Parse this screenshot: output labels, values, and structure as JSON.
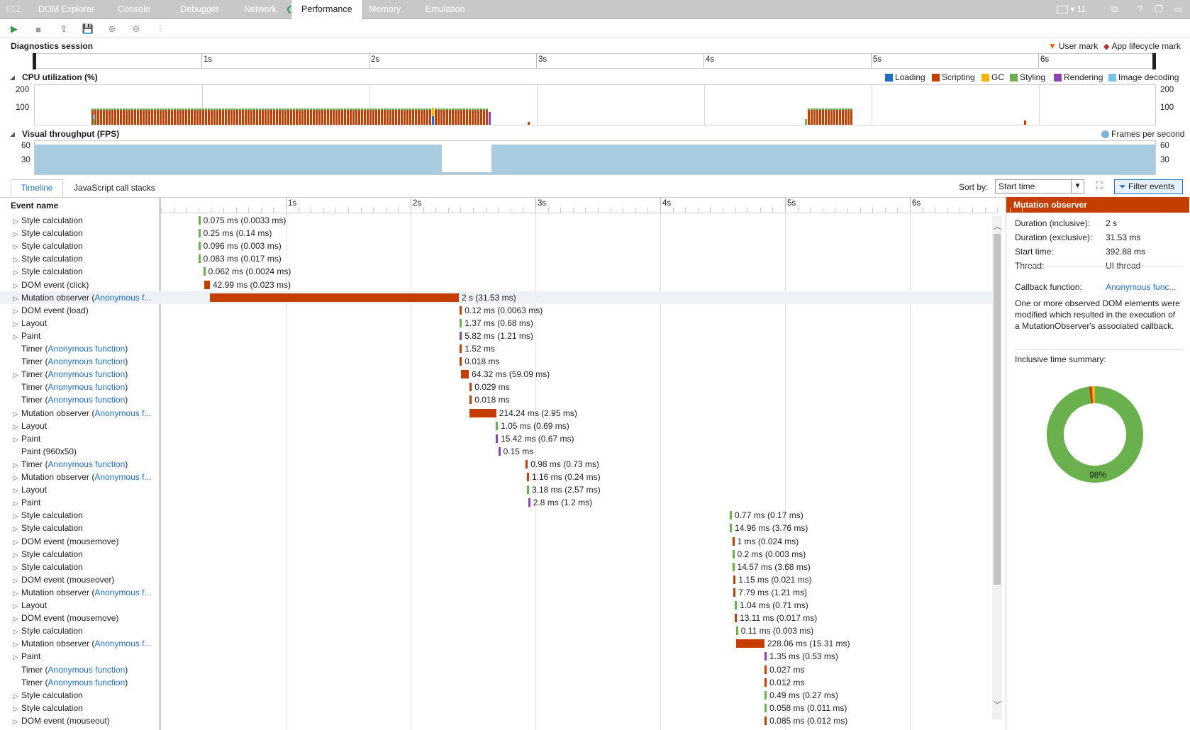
{
  "tabs": [
    {
      "label": "F12",
      "active": false
    },
    {
      "label": "DOM Explorer",
      "active": false
    },
    {
      "label": "Console",
      "active": false
    },
    {
      "label": "Debugger",
      "active": false
    },
    {
      "label": "Network",
      "active": false
    },
    {
      "label": "Performance",
      "active": true
    },
    {
      "label": "Memory",
      "active": false
    },
    {
      "label": "Emulation",
      "active": false
    }
  ],
  "tab_right": {
    "count": "11"
  },
  "toolbar": {
    "icons": [
      "play-icon",
      "stop-icon",
      "import-icon",
      "save-icon",
      "zoom-in-icon",
      "zoom-out-icon",
      "chart-icon"
    ]
  },
  "session": {
    "label": "Diagnostics session",
    "legend_user_mark": "User mark",
    "legend_app_mark": "App lifecycle mark",
    "ticks": [
      "1s",
      "2s",
      "3s",
      "4s",
      "5s",
      "6s"
    ]
  },
  "cpu": {
    "label": "CPU utilization (%)",
    "y_top": "200",
    "y_mid": "100",
    "legend": [
      {
        "name": "Loading",
        "color": "#1f6fc5"
      },
      {
        "name": "Scripting",
        "color": "#c43e00"
      },
      {
        "name": "GC",
        "color": "#f4b400"
      },
      {
        "name": "Styling",
        "color": "#6ab04c"
      },
      {
        "name": "Rendering",
        "color": "#8e44ad"
      },
      {
        "name": "Image decoding",
        "color": "#79c4e6"
      }
    ]
  },
  "fps": {
    "label": "Visual throughput (FPS)",
    "legend": "Frames per second",
    "y_top": "60",
    "y_mid": "30"
  },
  "views": {
    "tab_timeline": "Timeline",
    "tab_callstacks": "JavaScript call stacks",
    "sort_label": "Sort by:",
    "sort_value": "Start time",
    "filter_label": "Filter events"
  },
  "timeline": {
    "column_header": "Event name",
    "ticks": [
      "1s",
      "2s",
      "3s",
      "4s",
      "5s",
      "6s"
    ]
  },
  "events": [
    {
      "name": "Style calculation",
      "link": "",
      "expand": true,
      "start": 0.3,
      "dur": 0.01,
      "cat": "styling",
      "label": "0.075 ms (0.0033 ms)"
    },
    {
      "name": "Style calculation",
      "link": "",
      "expand": true,
      "start": 0.3,
      "dur": 0.01,
      "cat": "styling",
      "label": "0.25 ms (0.14 ms)"
    },
    {
      "name": "Style calculation",
      "link": "",
      "expand": true,
      "start": 0.3,
      "dur": 0.01,
      "cat": "styling",
      "label": "0.096 ms (0.003 ms)"
    },
    {
      "name": "Style calculation",
      "link": "",
      "expand": true,
      "start": 0.3,
      "dur": 0.01,
      "cat": "styling",
      "label": "0.083 ms (0.017 ms)"
    },
    {
      "name": "Style calculation",
      "link": "",
      "expand": true,
      "start": 0.34,
      "dur": 0.01,
      "cat": "styling",
      "label": "0.062 ms (0.0024 ms)"
    },
    {
      "name": "DOM event (click)",
      "link": "",
      "expand": true,
      "start": 0.35,
      "dur": 0.043,
      "cat": "scripting",
      "label": "42.99 ms (0.023 ms)"
    },
    {
      "name": "Mutation observer (",
      "link": "Anonymous f...",
      "close": "",
      "expand": true,
      "start": 0.393,
      "dur": 2.0,
      "cat": "scripting",
      "label": "2 s (31.53 ms)",
      "selected": true
    },
    {
      "name": "DOM event (load)",
      "link": "",
      "expand": true,
      "start": 2.4,
      "dur": 0.01,
      "cat": "scripting",
      "label": "0.12 ms (0.0063 ms)"
    },
    {
      "name": "Layout",
      "link": "",
      "expand": true,
      "start": 2.4,
      "dur": 0.01,
      "cat": "styling",
      "label": "1.37 ms (0.68 ms)"
    },
    {
      "name": "Paint",
      "link": "",
      "expand": true,
      "start": 2.4,
      "dur": 0.01,
      "cat": "rendering",
      "label": "5.82 ms (1.21 ms)"
    },
    {
      "name": "Timer (",
      "link": "Anonymous function",
      "close": ")",
      "expand": false,
      "start": 2.4,
      "dur": 0.01,
      "cat": "scripting",
      "label": "1.52 ms"
    },
    {
      "name": "Timer (",
      "link": "Anonymous function",
      "close": ")",
      "expand": false,
      "start": 2.4,
      "dur": 0.01,
      "cat": "scripting",
      "label": "0.018 ms"
    },
    {
      "name": "Timer (",
      "link": "Anonymous function",
      "close": ")",
      "expand": true,
      "start": 2.41,
      "dur": 0.064,
      "cat": "scripting",
      "label": "64.32 ms (59.09 ms)"
    },
    {
      "name": "Timer (",
      "link": "Anonymous function",
      "close": ")",
      "expand": false,
      "start": 2.48,
      "dur": 0.01,
      "cat": "scripting",
      "label": "0.029 ms"
    },
    {
      "name": "Timer (",
      "link": "Anonymous function",
      "close": ")",
      "expand": false,
      "start": 2.48,
      "dur": 0.01,
      "cat": "scripting",
      "label": "0.018 ms"
    },
    {
      "name": "Mutation observer (",
      "link": "Anonymous f...",
      "close": "",
      "expand": true,
      "start": 2.48,
      "dur": 0.214,
      "cat": "scripting",
      "label": "214.24 ms (2.95 ms)"
    },
    {
      "name": "Layout",
      "link": "",
      "expand": true,
      "start": 2.69,
      "dur": 0.01,
      "cat": "styling",
      "label": "1.05 ms (0.69 ms)"
    },
    {
      "name": "Paint",
      "link": "",
      "expand": true,
      "start": 2.69,
      "dur": 0.015,
      "cat": "rendering",
      "label": "15.42 ms (0.67 ms)"
    },
    {
      "name": "Paint (960x50)",
      "link": "",
      "expand": false,
      "start": 2.71,
      "dur": 0.01,
      "cat": "rendering",
      "label": "0.15 ms"
    },
    {
      "name": "Timer (",
      "link": "Anonymous function",
      "close": ")",
      "expand": true,
      "start": 2.93,
      "dur": 0.01,
      "cat": "scripting",
      "label": "0.98 ms (0.73 ms)"
    },
    {
      "name": "Mutation observer (",
      "link": "Anonymous f...",
      "close": "",
      "expand": true,
      "start": 2.94,
      "dur": 0.01,
      "cat": "scripting",
      "label": "1.16 ms (0.24 ms)"
    },
    {
      "name": "Layout",
      "link": "",
      "expand": true,
      "start": 2.94,
      "dur": 0.01,
      "cat": "styling",
      "label": "3.18 ms (2.57 ms)"
    },
    {
      "name": "Paint",
      "link": "",
      "expand": true,
      "start": 2.95,
      "dur": 0.01,
      "cat": "rendering",
      "label": "2.8 ms (1.2 ms)"
    },
    {
      "name": "Style calculation",
      "link": "",
      "expand": true,
      "start": 4.57,
      "dur": 0.01,
      "cat": "styling",
      "label": "0.77 ms (0.17 ms)"
    },
    {
      "name": "Style calculation",
      "link": "",
      "expand": true,
      "start": 4.57,
      "dur": 0.015,
      "cat": "styling",
      "label": "14.96 ms (3.76 ms)"
    },
    {
      "name": "DOM event (mousemove)",
      "link": "",
      "expand": true,
      "start": 4.59,
      "dur": 0.01,
      "cat": "scripting",
      "label": "1 ms (0.024 ms)"
    },
    {
      "name": "Style calculation",
      "link": "",
      "expand": true,
      "start": 4.59,
      "dur": 0.01,
      "cat": "styling",
      "label": "0.2 ms (0.003 ms)"
    },
    {
      "name": "Style calculation",
      "link": "",
      "expand": true,
      "start": 4.59,
      "dur": 0.015,
      "cat": "styling",
      "label": "14.57 ms (3.68 ms)"
    },
    {
      "name": "DOM event (mouseover)",
      "link": "",
      "expand": true,
      "start": 4.6,
      "dur": 0.01,
      "cat": "scripting",
      "label": "1.15 ms (0.021 ms)"
    },
    {
      "name": "Mutation observer (",
      "link": "Anonymous f...",
      "close": "",
      "expand": true,
      "start": 4.6,
      "dur": 0.01,
      "cat": "scripting",
      "label": "7.79 ms (1.21 ms)"
    },
    {
      "name": "Layout",
      "link": "",
      "expand": true,
      "start": 4.61,
      "dur": 0.01,
      "cat": "styling",
      "label": "1.04 ms (0.71 ms)"
    },
    {
      "name": "DOM event (mousemove)",
      "link": "",
      "expand": true,
      "start": 4.61,
      "dur": 0.013,
      "cat": "scripting",
      "label": "13.11 ms (0.017 ms)"
    },
    {
      "name": "Style calculation",
      "link": "",
      "expand": true,
      "start": 4.62,
      "dur": 0.01,
      "cat": "styling",
      "label": "0.11 ms (0.003 ms)"
    },
    {
      "name": "Mutation observer (",
      "link": "Anonymous f...",
      "close": "",
      "expand": true,
      "start": 4.62,
      "dur": 0.228,
      "cat": "scripting",
      "label": "228.06 ms (15.31 ms)"
    },
    {
      "name": "Paint",
      "link": "",
      "expand": true,
      "start": 4.85,
      "dur": 0.01,
      "cat": "rendering",
      "label": "1.35 ms (0.53 ms)"
    },
    {
      "name": "Timer (",
      "link": "Anonymous function",
      "close": ")",
      "expand": false,
      "start": 4.85,
      "dur": 0.01,
      "cat": "scripting",
      "label": "0.027 ms"
    },
    {
      "name": "Timer (",
      "link": "Anonymous function",
      "close": ")",
      "expand": false,
      "start": 4.85,
      "dur": 0.01,
      "cat": "scripting",
      "label": "0.012 ms"
    },
    {
      "name": "Style calculation",
      "link": "",
      "expand": true,
      "start": 4.85,
      "dur": 0.01,
      "cat": "styling",
      "label": "0.49 ms (0.27 ms)"
    },
    {
      "name": "Style calculation",
      "link": "",
      "expand": true,
      "start": 4.85,
      "dur": 0.01,
      "cat": "styling",
      "label": "0.058 ms (0.011 ms)"
    },
    {
      "name": "DOM event (mouseout)",
      "link": "",
      "expand": true,
      "start": 4.85,
      "dur": 0.01,
      "cat": "scripting",
      "label": "0.085 ms (0.012 ms)"
    }
  ],
  "detail": {
    "title": "Mutation observer",
    "rows": [
      {
        "k": "Duration (inclusive):",
        "v": "2 s"
      },
      {
        "k": "Duration (exclusive):",
        "v": "31.53 ms"
      },
      {
        "k": "Start time:",
        "v": "392.88 ms"
      },
      {
        "k": "Thread:",
        "v": "UI thread"
      }
    ],
    "callback_label": "Callback function:",
    "callback_value": "Anonymous func...",
    "description": "One or more observed DOM elements were modified which resulted in the execution of a MutationObserver's associated callback.",
    "summary_label": "Inclusive time summary:",
    "donut": [
      {
        "cat": "styling",
        "pct": 98
      },
      {
        "cat": "scripting",
        "pct": 1
      },
      {
        "cat": "gc",
        "pct": 1
      }
    ],
    "donut_label": "98%"
  },
  "colors": {
    "scripting": "#c43e00",
    "styling": "#6ab04c",
    "rendering": "#8e44ad",
    "loading": "#1f6fc5",
    "gc": "#f4b400",
    "image": "#79c4e6",
    "fps": "#a8cbe0",
    "accent": "#1f6fc5"
  }
}
